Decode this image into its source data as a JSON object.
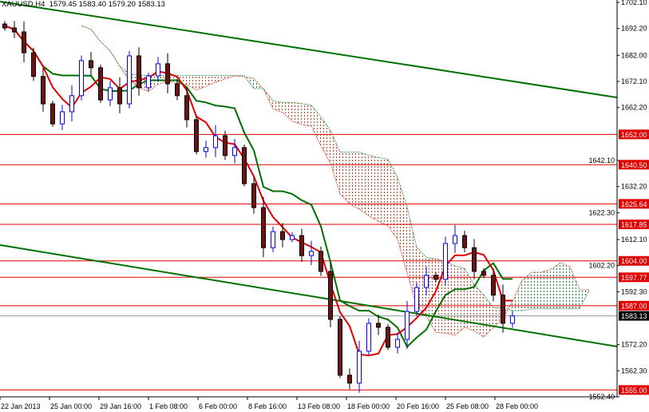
{
  "header": {
    "symbol": "XAUUSD,H4",
    "ohlc": "1579.45 1583.40 1579.20 1583.13"
  },
  "colors": {
    "bull": "#0000ff",
    "bear": "#6b1414",
    "level": "#e00000",
    "tenkan": "#e00000",
    "kijun": "#007000",
    "trendline": "#007000",
    "current_price_box": "#000000",
    "cloud_up": "#1a8a3a",
    "cloud_down": "#d04020"
  },
  "chart_data": {
    "type": "candlestick",
    "title": "XAUUSD,H4",
    "ylim": [
      1552.4,
      1702.1
    ],
    "y_ticks": [
      "1702.10",
      "1692.20",
      "1682.00",
      "1672.10",
      "1662.20",
      "1642.10",
      "1632.20",
      "1622.30",
      "1612.10",
      "1602.20",
      "1592.30",
      "1572.20",
      "1562.30",
      "1552.40"
    ],
    "x_ticks": [
      "22 Jan 2013",
      "25 Jan 00:00",
      "29 Jan 16:00",
      "1 Feb 08:00",
      "6 Feb 00:00",
      "8 Feb 16:00",
      "13 Feb 08:00",
      "18 Feb 00:00",
      "20 Feb 16:00",
      "25 Feb 08:00",
      "28 Feb 00:00"
    ],
    "closes": [
      1692.4,
      1690.9,
      1683,
      1674,
      1663.6,
      1656,
      1660.6,
      1666.7,
      1680,
      1677.3,
      1665.1,
      1669.7,
      1663.6,
      1681.8,
      1669.7,
      1674.2,
      1678.8,
      1671.2,
      1666.7,
      1657.6,
      1645.5,
      1647,
      1651.5,
      1644,
      1647,
      1633.3,
      1624.2,
      1609,
      1615.1,
      1612.1,
      1613.6,
      1606,
      1607.6,
      1600,
      1581.8,
      1560.6,
      1557.6,
      1569.7,
      1580.3,
      1578.8,
      1571.2,
      1574.2,
      1584.8,
      1593.9,
      1598.5,
      1597,
      1610.6,
      1613.6,
      1609,
      1600,
      1598.5,
      1591,
      1580.3,
      1583.13
    ],
    "levels": [
      {
        "price": 1652.0,
        "label": "1652.00"
      },
      {
        "price": 1640.5,
        "label": "1640.50"
      },
      {
        "price": 1625.64,
        "label": "1625.64"
      },
      {
        "price": 1617.85,
        "label": "1617.85"
      },
      {
        "price": 1604.0,
        "label": "1604.00"
      },
      {
        "price": 1597.77,
        "label": "1597.77"
      },
      {
        "price": 1587.0,
        "label": "1587.00"
      },
      {
        "price": 1555.0,
        "label": "1555.00"
      }
    ],
    "current_price": {
      "price": 1583.13,
      "label": "1583.13"
    },
    "trendlines": [
      {
        "start_price": 1702.4,
        "end_price": 1666.0
      },
      {
        "start_price": 1610.0,
        "end_price": 1571.5
      }
    ],
    "indicators": [
      "Ichimoku Kinko Hyo"
    ],
    "grid": false
  }
}
